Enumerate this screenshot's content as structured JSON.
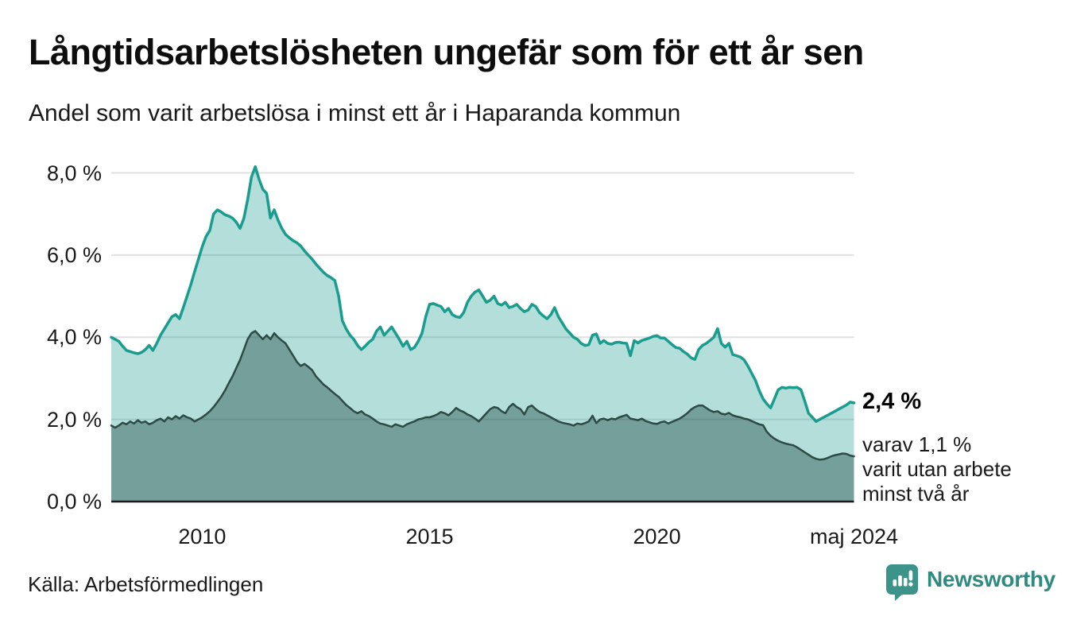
{
  "header": {
    "title": "Långtidsarbetslösheten ungefär som för ett år sen",
    "subtitle": "Andel som varit arbetslösa i minst ett år i Haparanda kommun"
  },
  "annotation": {
    "value": 2.4,
    "value_label": "2,4 %",
    "secondary_value": 1.1,
    "detail_lines": [
      "varav 1,1 %",
      "varit utan arbete",
      "minst två år"
    ]
  },
  "footer": {
    "source": "Källa: Arbetsförmedlingen",
    "brand": "Newsworthy"
  },
  "colors": {
    "title": "#0d0d0d",
    "text": "#1a1a1a",
    "gridline": "#e0e0e0",
    "axis": "#1b1b1b",
    "series1_stroke": "#1a9c8e",
    "series1_fill": "rgba(26,156,142,0.33)",
    "series2_stroke": "#2d4a45",
    "series2_fill": "rgba(31,72,66,0.42)",
    "brand_teal": "#3b938a"
  },
  "chart_data": {
    "type": "area",
    "title": "Långtidsarbetslösheten ungefär som för ett år sen",
    "subtitle": "Andel som varit arbetslösa i minst ett år i Haparanda kommun",
    "unit": "%",
    "grid": "horizontal",
    "legend_position": "none",
    "x_range": {
      "start": "2008-01",
      "end": "2024-05",
      "frequency": "monthly"
    },
    "ylim": [
      0,
      8.4
    ],
    "x_ticks": [
      {
        "label": "2010",
        "month_index": 24
      },
      {
        "label": "2015",
        "month_index": 84
      },
      {
        "label": "2020",
        "month_index": 144
      },
      {
        "label": "maj 2024",
        "month_index": 196
      }
    ],
    "y_ticks": [
      {
        "label": "0,0 %",
        "value": 0
      },
      {
        "label": "2,0 %",
        "value": 2
      },
      {
        "label": "4,0 %",
        "value": 4
      },
      {
        "label": "6,0 %",
        "value": 6
      },
      {
        "label": "8,0 %",
        "value": 8
      }
    ],
    "series": [
      {
        "name": "Andel som varit arbetslösa i minst ett år",
        "stroke": "#1a9c8e",
        "stroke_width": 3.5,
        "fill": "rgba(26,156,142,0.33)",
        "end_value": 2.4,
        "values": [
          4.0,
          3.95,
          3.9,
          3.78,
          3.68,
          3.65,
          3.62,
          3.6,
          3.63,
          3.7,
          3.8,
          3.68,
          3.85,
          4.05,
          4.2,
          4.35,
          4.5,
          4.55,
          4.45,
          4.72,
          5.0,
          5.28,
          5.6,
          5.9,
          6.2,
          6.45,
          6.6,
          7.0,
          7.1,
          7.05,
          6.98,
          6.95,
          6.9,
          6.8,
          6.65,
          6.9,
          7.35,
          7.9,
          8.15,
          7.85,
          7.6,
          7.5,
          6.9,
          7.1,
          6.85,
          6.65,
          6.5,
          6.42,
          6.35,
          6.3,
          6.22,
          6.1,
          6.0,
          5.9,
          5.78,
          5.68,
          5.58,
          5.5,
          5.45,
          5.38,
          5.0,
          4.4,
          4.2,
          4.05,
          3.95,
          3.8,
          3.7,
          3.78,
          3.88,
          3.95,
          4.15,
          4.25,
          4.05,
          4.15,
          4.25,
          4.1,
          3.95,
          3.78,
          3.9,
          3.7,
          3.75,
          3.9,
          4.1,
          4.5,
          4.8,
          4.82,
          4.78,
          4.75,
          4.62,
          4.7,
          4.55,
          4.5,
          4.48,
          4.6,
          4.85,
          5.0,
          5.1,
          5.15,
          5.0,
          4.85,
          4.9,
          5.0,
          4.82,
          4.78,
          4.85,
          4.72,
          4.75,
          4.8,
          4.7,
          4.62,
          4.66,
          4.8,
          4.75,
          4.6,
          4.52,
          4.45,
          4.55,
          4.72,
          4.5,
          4.35,
          4.2,
          4.1,
          4.0,
          3.95,
          3.85,
          3.8,
          3.82,
          4.05,
          4.08,
          3.85,
          3.92,
          3.85,
          3.83,
          3.87,
          3.88,
          3.86,
          3.85,
          3.55,
          3.92,
          3.86,
          3.92,
          3.95,
          3.98,
          4.02,
          4.04,
          3.98,
          3.98,
          3.9,
          3.82,
          3.75,
          3.73,
          3.65,
          3.59,
          3.5,
          3.46,
          3.7,
          3.8,
          3.85,
          3.92,
          4.0,
          4.21,
          3.85,
          3.76,
          3.85,
          3.58,
          3.55,
          3.52,
          3.45,
          3.3,
          3.12,
          2.95,
          2.7,
          2.5,
          2.38,
          2.28,
          2.5,
          2.72,
          2.78,
          2.76,
          2.78,
          2.77,
          2.78,
          2.72,
          2.45,
          2.15,
          2.05,
          1.95,
          2.0,
          2.05,
          2.1,
          2.15,
          2.2,
          2.25,
          2.3,
          2.35,
          2.42,
          2.4
        ]
      },
      {
        "name": "varav utan arbete minst två år",
        "stroke": "#2d4a45",
        "stroke_width": 2.5,
        "fill": "rgba(31,72,66,0.42)",
        "end_value": 1.1,
        "values": [
          1.85,
          1.8,
          1.85,
          1.92,
          1.88,
          1.95,
          1.9,
          1.98,
          1.92,
          1.95,
          1.88,
          1.92,
          1.98,
          2.02,
          1.95,
          2.05,
          2.0,
          2.08,
          2.02,
          2.1,
          2.05,
          2.02,
          1.95,
          2.0,
          2.05,
          2.12,
          2.2,
          2.3,
          2.42,
          2.55,
          2.7,
          2.88,
          3.05,
          3.25,
          3.45,
          3.7,
          3.95,
          4.1,
          4.15,
          4.05,
          3.95,
          4.05,
          3.95,
          4.1,
          4.0,
          3.92,
          3.85,
          3.7,
          3.55,
          3.4,
          3.3,
          3.35,
          3.28,
          3.2,
          3.05,
          2.95,
          2.85,
          2.78,
          2.7,
          2.62,
          2.55,
          2.45,
          2.35,
          2.28,
          2.2,
          2.15,
          2.2,
          2.12,
          2.08,
          2.02,
          1.95,
          1.9,
          1.88,
          1.85,
          1.82,
          1.88,
          1.85,
          1.82,
          1.88,
          1.92,
          1.95,
          2.0,
          2.02,
          2.05,
          2.05,
          2.08,
          2.12,
          2.18,
          2.15,
          2.1,
          2.18,
          2.28,
          2.22,
          2.18,
          2.12,
          2.08,
          2.02,
          1.95,
          2.05,
          2.15,
          2.25,
          2.3,
          2.28,
          2.2,
          2.15,
          2.3,
          2.38,
          2.3,
          2.25,
          2.12,
          2.3,
          2.34,
          2.25,
          2.18,
          2.15,
          2.1,
          2.05,
          2.0,
          1.95,
          1.92,
          1.9,
          1.88,
          1.85,
          1.9,
          1.88,
          1.91,
          1.95,
          2.09,
          1.91,
          2.0,
          2.02,
          1.98,
          2.02,
          2.0,
          2.05,
          2.08,
          2.11,
          2.02,
          2.0,
          1.98,
          2.02,
          1.96,
          1.93,
          1.9,
          1.89,
          1.93,
          1.95,
          1.9,
          1.94,
          1.98,
          2.02,
          2.08,
          2.15,
          2.24,
          2.3,
          2.34,
          2.34,
          2.28,
          2.22,
          2.18,
          2.2,
          2.14,
          2.12,
          2.16,
          2.1,
          2.07,
          2.05,
          2.02,
          2.0,
          1.96,
          1.92,
          1.88,
          1.86,
          1.7,
          1.6,
          1.53,
          1.48,
          1.44,
          1.41,
          1.39,
          1.37,
          1.32,
          1.26,
          1.2,
          1.14,
          1.08,
          1.04,
          1.02,
          1.03,
          1.06,
          1.1,
          1.13,
          1.15,
          1.17,
          1.16,
          1.12,
          1.1
        ]
      }
    ]
  }
}
